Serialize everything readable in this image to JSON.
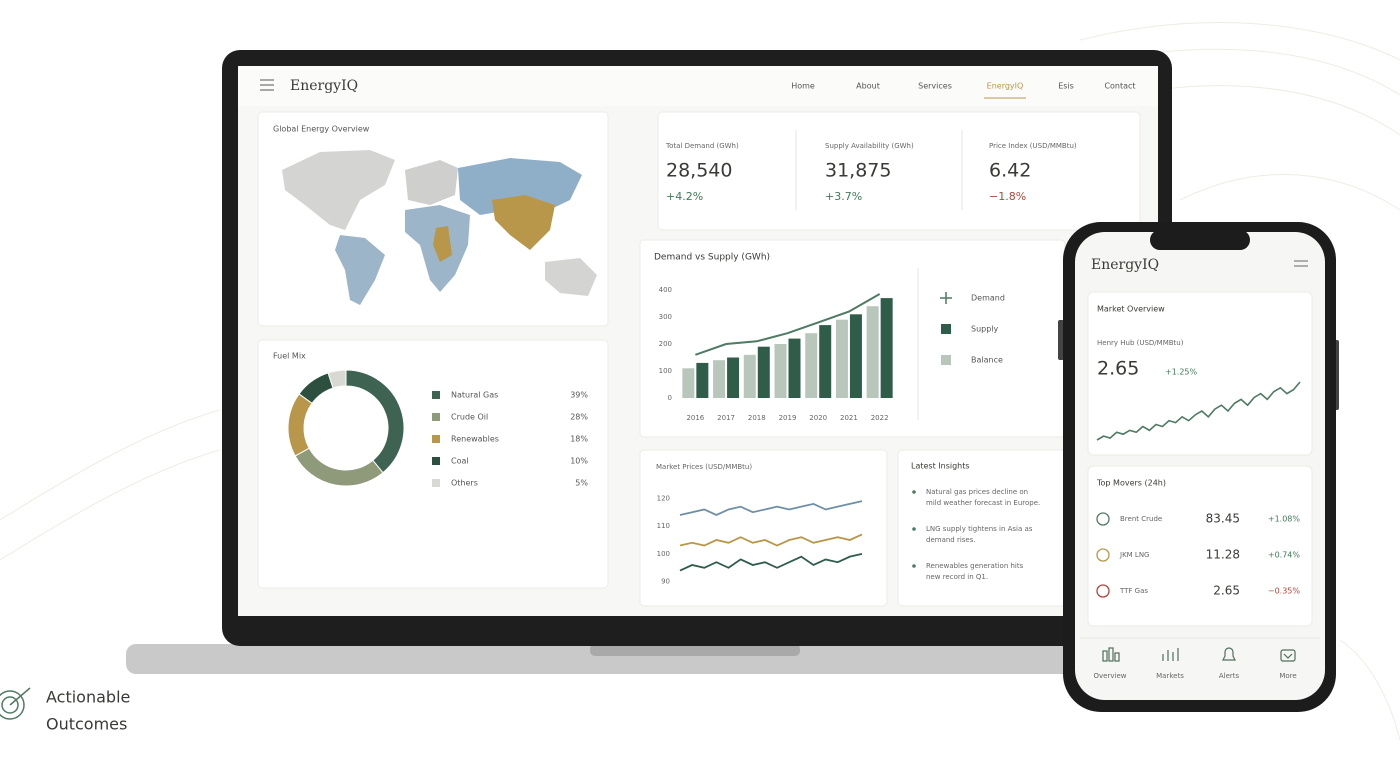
{
  "corner_label": {
    "lines": [
      "Actionable",
      "Outcomes"
    ]
  },
  "laptop": {
    "brand": "EnergyIQ",
    "nav": [
      "Home",
      "About",
      "Services",
      "EnergyIQ",
      "Esis",
      "Contact"
    ],
    "map": {
      "title": "Global Energy Overview"
    },
    "kpis": [
      {
        "label": "Total Demand (GWh)",
        "value": "28,540",
        "change": "+4.2%"
      },
      {
        "label": "Supply Availability (GWh)",
        "value": "31,875",
        "change": "+3.7%"
      },
      {
        "label": "Price Index (USD/MMBtu)",
        "value": "6.42",
        "change": "−1.8%"
      }
    ],
    "fuel_mix": {
      "type": "pie",
      "title": "Fuel Mix",
      "categories": [
        "Natural Gas",
        "Crude Oil",
        "Renewables",
        "Coal",
        "Others"
      ],
      "values": [
        39,
        28,
        18,
        10,
        5
      ],
      "value_labels": [
        "39%",
        "28%",
        "18%",
        "10%",
        "5%"
      ],
      "colors": [
        "#3e6352",
        "#8f9a7a",
        "#b9974a",
        "#2d4f3f",
        "#d9d9d4"
      ]
    },
    "demand_supply": {
      "type": "bar",
      "title": "Demand vs Supply (GWh)",
      "categories": [
        "2016",
        "2017",
        "2018",
        "2019",
        "2020",
        "2021",
        "2022"
      ],
      "ylim": [
        0,
        400
      ],
      "yticks": [
        0,
        100,
        200,
        300,
        400
      ],
      "series": [
        {
          "name": "Demand",
          "kind": "line",
          "color": "#4f7a63",
          "values": [
            160,
            200,
            210,
            240,
            280,
            320,
            385
          ]
        },
        {
          "name": "Supply",
          "kind": "bar",
          "color": "#2f5d4a",
          "values": [
            130,
            150,
            190,
            220,
            270,
            310,
            370
          ]
        },
        {
          "name": "Balance",
          "kind": "bar",
          "color": "#b9c6bc",
          "values": [
            110,
            140,
            160,
            200,
            240,
            290,
            340
          ]
        }
      ]
    },
    "market_prices": {
      "type": "line",
      "title": "Market Prices (USD/MMBtu)",
      "ylim": [
        87,
        123
      ],
      "yticks": [
        90,
        100,
        110,
        120
      ],
      "series": [
        {
          "color": "#6f8fa6",
          "values": [
            114,
            115,
            116,
            114,
            116,
            117,
            115,
            116,
            117,
            116,
            117,
            118,
            116,
            117,
            118,
            119
          ]
        },
        {
          "color": "#b9974a",
          "values": [
            103,
            104,
            103,
            105,
            104,
            106,
            104,
            105,
            103,
            105,
            106,
            104,
            105,
            106,
            105,
            107
          ]
        },
        {
          "color": "#2f5d4a",
          "values": [
            94,
            96,
            95,
            97,
            95,
            98,
            96,
            97,
            95,
            97,
            99,
            96,
            98,
            97,
            99,
            100
          ]
        }
      ]
    },
    "insights": {
      "title": "Latest Insights",
      "items": [
        {
          "lines": [
            "Natural gas prices decline on",
            "mild weather forecast in Europe."
          ]
        },
        {
          "lines": [
            "LNG supply tightens in Asia as",
            "demand rises."
          ]
        },
        {
          "lines": [
            "Renewables generation hits",
            "new record in Q1."
          ]
        }
      ]
    }
  },
  "phone": {
    "brand": "EnergyIQ",
    "market_overview": {
      "title": "Market Overview",
      "label": "Henry Hub (USD/MMBtu)",
      "value": "2.65",
      "change": "+1.25%",
      "sparkline": {
        "type": "line",
        "color": "#4f7a63",
        "values": [
          2.4,
          2.42,
          2.41,
          2.44,
          2.43,
          2.45,
          2.44,
          2.47,
          2.45,
          2.48,
          2.47,
          2.5,
          2.49,
          2.52,
          2.5,
          2.53,
          2.55,
          2.52,
          2.56,
          2.58,
          2.55,
          2.59,
          2.61,
          2.58,
          2.62,
          2.64,
          2.61,
          2.65,
          2.67,
          2.64,
          2.66,
          2.7
        ]
      }
    },
    "top_movers": {
      "title": "Top Movers (24h)",
      "rows": [
        {
          "name": "Brent Crude",
          "value": "83.45",
          "change": "+1.08%"
        },
        {
          "name": "JKM LNG",
          "value": "11.28",
          "change": "+0.74%"
        },
        {
          "name": "TTF Gas",
          "value": "2.65",
          "change": "−0.35%"
        }
      ]
    },
    "tabs": [
      "Overview",
      "Markets",
      "Alerts",
      "More"
    ]
  }
}
